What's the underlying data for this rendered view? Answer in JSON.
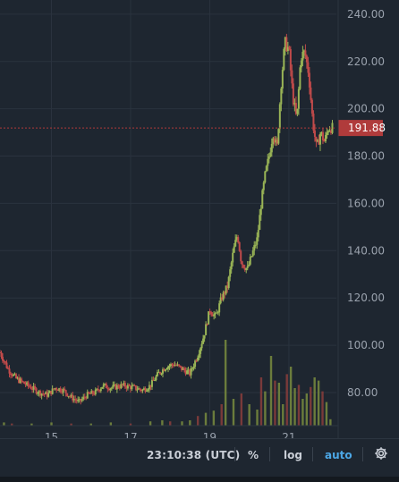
{
  "chart_data": {
    "type": "candlestick",
    "price_axis": {
      "ticks": [
        "240.00",
        "220.00",
        "200.00",
        "180.00",
        "160.00",
        "140.00",
        "120.00",
        "100.00",
        "80.00"
      ],
      "range": [
        66,
        246
      ]
    },
    "time_axis": {
      "ticks": [
        "15",
        "17",
        "19",
        "21"
      ],
      "tick_days": [
        15,
        17,
        19,
        21
      ],
      "range_days": [
        13.7,
        22.2
      ]
    },
    "last_price": {
      "label": "191.88",
      "value": 191.88
    },
    "price_path": [
      [
        13.7,
        97
      ],
      [
        13.9,
        90
      ],
      [
        14.1,
        86
      ],
      [
        14.3,
        84
      ],
      [
        14.5,
        82
      ],
      [
        14.7,
        80
      ],
      [
        14.9,
        79
      ],
      [
        15.1,
        82
      ],
      [
        15.3,
        81
      ],
      [
        15.5,
        78
      ],
      [
        15.7,
        76
      ],
      [
        15.9,
        79
      ],
      [
        16.1,
        80
      ],
      [
        16.3,
        83
      ],
      [
        16.5,
        82
      ],
      [
        16.8,
        83
      ],
      [
        17.1,
        82
      ],
      [
        17.3,
        81
      ],
      [
        17.5,
        83
      ],
      [
        17.7,
        88
      ],
      [
        17.9,
        91
      ],
      [
        18.1,
        92
      ],
      [
        18.3,
        90
      ],
      [
        18.5,
        88
      ],
      [
        18.7,
        96
      ],
      [
        18.85,
        104
      ],
      [
        19.0,
        115
      ],
      [
        19.15,
        112
      ],
      [
        19.3,
        120
      ],
      [
        19.45,
        125
      ],
      [
        19.6,
        140
      ],
      [
        19.7,
        147
      ],
      [
        19.8,
        135
      ],
      [
        19.95,
        132
      ],
      [
        20.1,
        140
      ],
      [
        20.2,
        145
      ],
      [
        20.3,
        160
      ],
      [
        20.4,
        172
      ],
      [
        20.5,
        180
      ],
      [
        20.6,
        190
      ],
      [
        20.7,
        183
      ],
      [
        20.8,
        210
      ],
      [
        20.9,
        228
      ],
      [
        21.0,
        225
      ],
      [
        21.1,
        205
      ],
      [
        21.2,
        195
      ],
      [
        21.3,
        222
      ],
      [
        21.4,
        224
      ],
      [
        21.5,
        215
      ],
      [
        21.6,
        195
      ],
      [
        21.7,
        183
      ],
      [
        21.8,
        190
      ],
      [
        21.9,
        186
      ],
      [
        22.0,
        192
      ],
      [
        22.1,
        191.88
      ]
    ],
    "volume_bars": [
      [
        13.8,
        0.03
      ],
      [
        14.0,
        0.02
      ],
      [
        14.5,
        0.02
      ],
      [
        15.0,
        0.03
      ],
      [
        15.5,
        0.02
      ],
      [
        16.0,
        0.02
      ],
      [
        16.5,
        0.03
      ],
      [
        17.0,
        0.02
      ],
      [
        17.5,
        0.04
      ],
      [
        17.8,
        0.05
      ],
      [
        18.0,
        0.04
      ],
      [
        18.3,
        0.04
      ],
      [
        18.5,
        0.05
      ],
      [
        18.7,
        0.09
      ],
      [
        18.9,
        0.12
      ],
      [
        19.1,
        0.14
      ],
      [
        19.3,
        0.2
      ],
      [
        19.4,
        0.8
      ],
      [
        19.6,
        0.25
      ],
      [
        19.8,
        0.3
      ],
      [
        20.0,
        0.2
      ],
      [
        20.2,
        0.15
      ],
      [
        20.3,
        0.45
      ],
      [
        20.4,
        0.32
      ],
      [
        20.55,
        0.65
      ],
      [
        20.65,
        0.42
      ],
      [
        20.75,
        0.4
      ],
      [
        20.85,
        0.2
      ],
      [
        20.95,
        0.48
      ],
      [
        21.05,
        0.55
      ],
      [
        21.15,
        0.35
      ],
      [
        21.25,
        0.38
      ],
      [
        21.35,
        0.25
      ],
      [
        21.45,
        0.3
      ],
      [
        21.55,
        0.36
      ],
      [
        21.65,
        0.45
      ],
      [
        21.75,
        0.42
      ],
      [
        21.85,
        0.32
      ],
      [
        21.95,
        0.22
      ],
      [
        22.05,
        0.06
      ]
    ],
    "grid": true
  },
  "footer": {
    "clock": "23:10:38 (UTC)",
    "percent_label": "%",
    "log_label": "log",
    "auto_label": "auto"
  },
  "colors": {
    "background": "#1e2630",
    "grid": "#2a333e",
    "up": "#9ab556",
    "down": "#c04a4a",
    "volume_up": "#6b7c3c",
    "volume_down": "#7a3a3a",
    "axis_text": "#9aa2ad",
    "price_label_bg": "#b03b3b",
    "accent": "#4ca7e6"
  }
}
